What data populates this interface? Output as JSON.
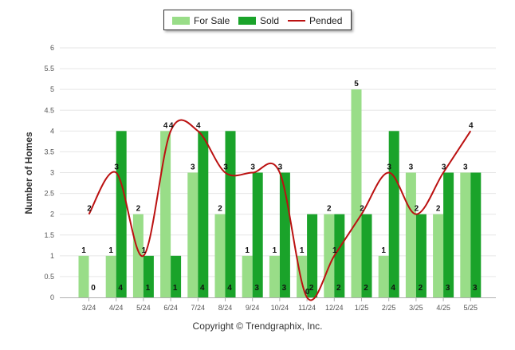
{
  "chart_data": {
    "type": "bar",
    "categories": [
      "3/24",
      "4/24",
      "5/24",
      "6/24",
      "7/24",
      "8/24",
      "9/24",
      "10/24",
      "11/24",
      "12/24",
      "1/25",
      "2/25",
      "3/25",
      "4/25",
      "5/25"
    ],
    "series": [
      {
        "name": "For Sale",
        "kind": "bar",
        "color": "#99dd88",
        "values": [
          1,
          1,
          2,
          4,
          3,
          2,
          1,
          1,
          1,
          2,
          5,
          1,
          3,
          2,
          3
        ]
      },
      {
        "name": "Sold",
        "kind": "bar",
        "color": "#1aa32a",
        "values": [
          0,
          4,
          1,
          1,
          4,
          4,
          3,
          3,
          2,
          2,
          2,
          4,
          2,
          3,
          3
        ]
      },
      {
        "name": "Pended",
        "kind": "line",
        "color": "#bb1111",
        "values": [
          2,
          3,
          1,
          4,
          4,
          3,
          3,
          3,
          0,
          1,
          2,
          3,
          2,
          3,
          4
        ]
      }
    ],
    "ylabel": "Number of Homes",
    "ylim": [
      0,
      6
    ],
    "yticks": [
      "0",
      "0.5",
      "1",
      "1.5",
      "2",
      "2.5",
      "3",
      "3.5",
      "4",
      "4.5",
      "5",
      "5.5",
      "6"
    ],
    "legend_position": "top-center",
    "grid": true
  },
  "footer": {
    "copyright": "Copyright © Trendgraphix, Inc."
  }
}
